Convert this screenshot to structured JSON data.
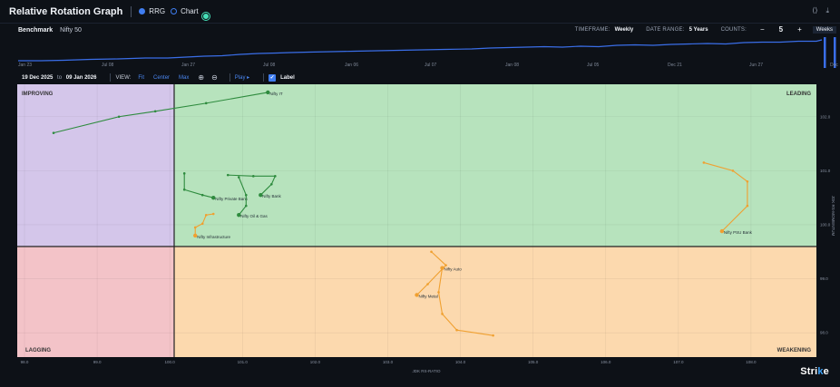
{
  "header": {
    "title": "Relative Rotation Graph",
    "view_options": [
      "RRG",
      "Chart"
    ],
    "selected_view": "RRG"
  },
  "benchmark": {
    "label": "Benchmark",
    "value": "Nifty 50",
    "timeframe_label": "TIMEFRAME:",
    "timeframe_value": "Weekly",
    "date_range_label": "DATE RANGE:",
    "date_range_value": "5 Years",
    "counts_label": "COUNTS:",
    "counts_value": "5",
    "decrement": "−",
    "increment": "+",
    "unit": "Weeks"
  },
  "mini_axis": [
    "Jan 23",
    "Jul 08",
    "Jan 27",
    "Jul 08",
    "Jan 06",
    "Jul 07",
    "Jan 08",
    "Jul 05",
    "Dec 21",
    "Jun 27",
    "Dec"
  ],
  "toolbar": {
    "date_from": "19 Dec 2025",
    "date_to_word": "to",
    "date_to": "09 Jan 2026",
    "view_label": "VIEW:",
    "fit": "Fit",
    "center": "Center",
    "max": "Max",
    "zoom_in": "⊕",
    "zoom_out": "⊖",
    "play": "Play ▸",
    "label_toggle": "Label",
    "label_checked": true
  },
  "quadrants": {
    "improving": "IMPROVING",
    "leading": "LEADING",
    "lagging": "LAGGING",
    "weakening": "WEAKENING",
    "colors": {
      "improving": "#d4c6ea",
      "leading": "#b7e3bd",
      "lagging": "#f3c3c8",
      "weakening": "#fcd9ae"
    }
  },
  "axes": {
    "x_label": "JDK RS-RATIO",
    "y_label": "JDK RS-MOMENTUM",
    "x_ticks": [
      "98.0",
      "99.0",
      "100.0",
      "101.0",
      "102.0",
      "103.0",
      "104.0",
      "105.0",
      "106.0",
      "107.0",
      "108.0"
    ],
    "y_ticks": [
      "102.0",
      "101.0",
      "100.0",
      "99.0",
      "98.0"
    ],
    "x_range": [
      97.9,
      108.9
    ],
    "y_range": [
      97.55,
      102.6
    ]
  },
  "chart_data": {
    "type": "scatter",
    "xlabel": "JDK RS-RATIO",
    "ylabel": "JDK RS-MOMENTUM",
    "xlim": [
      97.9,
      108.9
    ],
    "ylim": [
      97.55,
      102.6
    ],
    "series": [
      {
        "name": "Nifty IT",
        "color": "#2e8b3e",
        "points": [
          [
            98.4,
            101.7
          ],
          [
            99.3,
            102.0
          ],
          [
            99.8,
            102.1
          ],
          [
            100.5,
            102.25
          ],
          [
            101.35,
            102.45
          ]
        ]
      },
      {
        "name": "Nifty Private Bank",
        "color": "#2e8b3e",
        "points": [
          [
            100.2,
            100.95
          ],
          [
            100.2,
            100.65
          ],
          [
            100.45,
            100.55
          ],
          [
            100.6,
            100.5
          ]
        ]
      },
      {
        "name": "Nifty Bank",
        "color": "#2e8b3e",
        "points": [
          [
            100.8,
            100.92
          ],
          [
            101.15,
            100.9
          ],
          [
            101.45,
            100.9
          ],
          [
            101.4,
            100.75
          ],
          [
            101.25,
            100.55
          ]
        ]
      },
      {
        "name": "Nifty Oil & Gas",
        "color": "#2e8b3e",
        "points": [
          [
            100.95,
            100.88
          ],
          [
            101.05,
            100.55
          ],
          [
            101.05,
            100.35
          ],
          [
            100.95,
            100.18
          ]
        ]
      },
      {
        "name": "Nifty Infrastructure",
        "color": "#f0a030",
        "points": [
          [
            100.6,
            100.2
          ],
          [
            100.5,
            100.18
          ],
          [
            100.45,
            100.02
          ],
          [
            100.35,
            99.95
          ],
          [
            100.35,
            99.8
          ]
        ]
      },
      {
        "name": "Nifty Metal",
        "color": "#f0a030",
        "points": [
          [
            103.6,
            99.5
          ],
          [
            103.8,
            99.25
          ],
          [
            103.55,
            98.9
          ],
          [
            103.4,
            98.7
          ]
        ]
      },
      {
        "name": "Nifty Auto",
        "color": "#f0a030",
        "points": [
          [
            104.45,
            97.95
          ],
          [
            103.95,
            98.05
          ],
          [
            103.75,
            98.35
          ],
          [
            103.7,
            98.75
          ],
          [
            103.75,
            99.2
          ]
        ]
      },
      {
        "name": "Nifty PSU Bank",
        "color": "#f0a030",
        "points": [
          [
            107.35,
            101.15
          ],
          [
            107.75,
            101.0
          ],
          [
            107.95,
            100.8
          ],
          [
            107.95,
            100.35
          ],
          [
            107.6,
            99.88
          ]
        ]
      }
    ]
  }
}
